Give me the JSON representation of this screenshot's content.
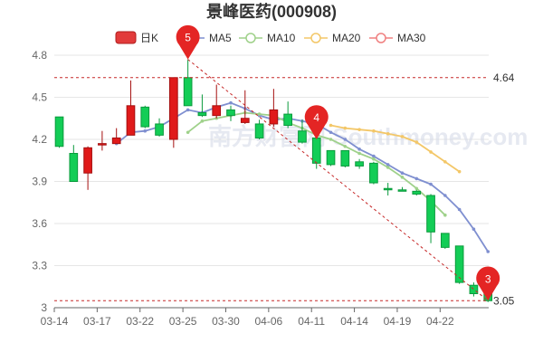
{
  "chart_data": {
    "type": "candlestick",
    "title": "景峰医药(000908)",
    "legend": [
      {
        "name": "日K",
        "color": "#e23b3b"
      },
      {
        "name": "MA5",
        "color": "#7f8fd0"
      },
      {
        "name": "MA10",
        "color": "#9fd18a"
      },
      {
        "name": "MA20",
        "color": "#f3c768"
      },
      {
        "name": "MA30",
        "color": "#f08181"
      }
    ],
    "ylim": [
      3.0,
      4.8
    ],
    "yticks": [
      3,
      3.3,
      3.6,
      3.9,
      4.2,
      4.5,
      4.8
    ],
    "xtick_labels": [
      "03-14",
      "03-17",
      "03-22",
      "03-25",
      "03-30",
      "04-06",
      "04-11",
      "04-14",
      "04-19",
      "04-22"
    ],
    "xtick_indices": [
      0,
      3,
      6,
      9,
      12,
      15,
      18,
      21,
      24,
      27
    ],
    "reference_lines": [
      {
        "value": 4.64,
        "label": "4.64"
      },
      {
        "value": 3.05,
        "label": "3.05"
      }
    ],
    "markers": [
      {
        "label": "5",
        "index": 9,
        "value": 4.77
      },
      {
        "label": "4",
        "index": 18,
        "value": 4.2
      },
      {
        "label": "3",
        "index": 30,
        "value": 3.05
      }
    ],
    "trend_line": {
      "from_index": 9,
      "from_value": 4.77,
      "to_index": 30,
      "to_value": 3.05
    },
    "candles": [
      {
        "date": "03-14",
        "open": 4.15,
        "close": 4.36,
        "high": 4.36,
        "low": 4.14
      },
      {
        "date": "03-15",
        "open": 3.9,
        "close": 4.1,
        "high": 4.16,
        "low": 3.9
      },
      {
        "date": "03-16",
        "open": 4.14,
        "close": 3.96,
        "high": 4.15,
        "low": 3.84
      },
      {
        "date": "03-17",
        "open": 4.17,
        "close": 4.16,
        "high": 4.26,
        "low": 4.12
      },
      {
        "date": "03-18",
        "open": 4.21,
        "close": 4.17,
        "high": 4.28,
        "low": 4.17
      },
      {
        "date": "03-21",
        "open": 4.44,
        "close": 4.23,
        "high": 4.62,
        "low": 4.23
      },
      {
        "date": "03-22",
        "open": 4.29,
        "close": 4.43,
        "high": 4.44,
        "low": 4.28
      },
      {
        "date": "03-23",
        "open": 4.23,
        "close": 4.31,
        "high": 4.35,
        "low": 4.22
      },
      {
        "date": "03-24",
        "open": 4.64,
        "close": 4.2,
        "high": 4.64,
        "low": 4.14
      },
      {
        "date": "03-25",
        "open": 4.44,
        "close": 4.64,
        "high": 4.77,
        "low": 4.44
      },
      {
        "date": "03-28",
        "open": 4.37,
        "close": 4.39,
        "high": 4.52,
        "low": 4.36
      },
      {
        "date": "03-29",
        "open": 4.44,
        "close": 4.37,
        "high": 4.59,
        "low": 4.35
      },
      {
        "date": "03-30",
        "open": 4.37,
        "close": 4.41,
        "high": 4.44,
        "low": 4.33
      },
      {
        "date": "03-31",
        "open": 4.35,
        "close": 4.32,
        "high": 4.55,
        "low": 4.31
      },
      {
        "date": "04-01",
        "open": 4.21,
        "close": 4.31,
        "high": 4.34,
        "low": 4.2
      },
      {
        "date": "04-06",
        "open": 4.41,
        "close": 4.31,
        "high": 4.56,
        "low": 4.29
      },
      {
        "date": "04-07",
        "open": 4.3,
        "close": 4.38,
        "high": 4.47,
        "low": 4.28
      },
      {
        "date": "04-08",
        "open": 4.18,
        "close": 4.26,
        "high": 4.34,
        "low": 4.17
      },
      {
        "date": "04-11",
        "open": 4.03,
        "close": 4.21,
        "high": 4.22,
        "low": 3.99
      },
      {
        "date": "04-12",
        "open": 4.02,
        "close": 4.12,
        "high": 4.12,
        "low": 4.01
      },
      {
        "date": "04-13",
        "open": 4.01,
        "close": 4.12,
        "high": 4.12,
        "low": 4.0
      },
      {
        "date": "04-14",
        "open": 4.01,
        "close": 4.04,
        "high": 4.06,
        "low": 3.99
      },
      {
        "date": "04-15",
        "open": 3.89,
        "close": 4.03,
        "high": 4.04,
        "low": 3.88
      },
      {
        "date": "04-18",
        "open": 3.85,
        "close": 3.85,
        "high": 3.89,
        "low": 3.8
      },
      {
        "date": "04-19",
        "open": 3.84,
        "close": 3.84,
        "high": 3.86,
        "low": 3.83
      },
      {
        "date": "04-20",
        "open": 3.81,
        "close": 3.83,
        "high": 3.84,
        "low": 3.8
      },
      {
        "date": "04-21",
        "open": 3.54,
        "close": 3.8,
        "high": 3.81,
        "low": 3.46
      },
      {
        "date": "04-22",
        "open": 3.43,
        "close": 3.53,
        "high": 3.53,
        "low": 3.42
      },
      {
        "date": "04-25",
        "open": 3.18,
        "close": 3.44,
        "high": 3.44,
        "low": 3.17
      },
      {
        "date": "04-26",
        "open": 3.1,
        "close": 3.16,
        "high": 3.18,
        "low": 3.08
      },
      {
        "date": "04-27",
        "open": 3.05,
        "close": 3.1,
        "high": 3.1,
        "low": 3.04
      }
    ],
    "ma_series": [
      {
        "name": "MA5",
        "start": 4,
        "values": [
          4.17,
          4.25,
          4.26,
          4.29,
          4.35,
          4.41,
          4.39,
          4.43,
          4.46,
          4.42,
          4.37,
          4.34,
          4.35,
          4.33,
          4.31,
          4.25,
          4.2,
          4.13,
          4.08,
          4.02,
          3.96,
          3.92,
          3.88,
          3.8,
          3.7,
          3.56,
          3.4
        ]
      },
      {
        "name": "MA10",
        "start": 9,
        "values": [
          4.25,
          4.33,
          4.35,
          4.37,
          4.39,
          4.38,
          4.37,
          4.32,
          4.28,
          4.23,
          4.2,
          4.15,
          4.1,
          4.06,
          4.0,
          3.93,
          3.85,
          3.76,
          3.66
        ]
      },
      {
        "name": "MA20",
        "start": 19,
        "values": [
          4.3,
          4.28,
          4.27,
          4.26,
          4.24,
          4.22,
          4.18,
          4.11,
          4.04,
          3.97
        ]
      }
    ],
    "watermark": "南方财富网 Southmoney.com"
  }
}
